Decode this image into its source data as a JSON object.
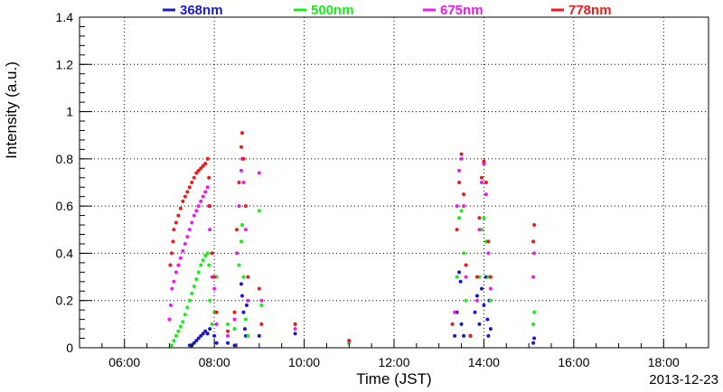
{
  "chart_data": {
    "type": "scatter",
    "title": "",
    "xlabel": "Time (JST)",
    "ylabel": "Intensity (a.u.)",
    "date_label": "2013-12-23",
    "xlim_hours": [
      5.0,
      19.0
    ],
    "ylim": [
      0,
      1.4
    ],
    "x_ticks": [
      {
        "hour": 6,
        "label": "06:00"
      },
      {
        "hour": 8,
        "label": "08:00"
      },
      {
        "hour": 10,
        "label": "10:00"
      },
      {
        "hour": 12,
        "label": "12:00"
      },
      {
        "hour": 14,
        "label": "14:00"
      },
      {
        "hour": 16,
        "label": "16:00"
      },
      {
        "hour": 18,
        "label": "18:00"
      }
    ],
    "y_ticks": [
      {
        "value": 0,
        "label": "0"
      },
      {
        "value": 0.2,
        "label": "0.2"
      },
      {
        "value": 0.4,
        "label": "0.4"
      },
      {
        "value": 0.6,
        "label": "0.6"
      },
      {
        "value": 0.8,
        "label": "0.8"
      },
      {
        "value": 1.0,
        "label": "1"
      },
      {
        "value": 1.2,
        "label": "1.2"
      },
      {
        "value": 1.4,
        "label": "1.4"
      }
    ],
    "grid": true,
    "legend_position": "top",
    "series": [
      {
        "name": "368nm",
        "color": "#1a1acc",
        "points": [
          [
            7.45,
            0.01
          ],
          [
            7.5,
            0.01
          ],
          [
            7.55,
            0.02
          ],
          [
            7.6,
            0.03
          ],
          [
            7.65,
            0.04
          ],
          [
            7.7,
            0.05
          ],
          [
            7.75,
            0.06
          ],
          [
            7.8,
            0.07
          ],
          [
            7.85,
            0.06
          ],
          [
            7.9,
            0.08
          ],
          [
            8.0,
            0.05
          ],
          [
            8.05,
            0.02
          ],
          [
            8.3,
            0.02
          ],
          [
            8.45,
            0.01
          ],
          [
            8.6,
            0.27
          ],
          [
            8.62,
            0.22
          ],
          [
            8.65,
            0.15
          ],
          [
            8.68,
            0.08
          ],
          [
            8.7,
            0.05
          ],
          [
            8.72,
            0.18
          ],
          [
            9.0,
            0.05
          ],
          [
            9.8,
            0.06
          ],
          [
            13.35,
            0.05
          ],
          [
            13.4,
            0.15
          ],
          [
            13.45,
            0.32
          ],
          [
            13.48,
            0.28
          ],
          [
            13.5,
            0.1
          ],
          [
            13.55,
            0.05
          ],
          [
            13.7,
            0.05
          ],
          [
            13.8,
            0.15
          ],
          [
            13.85,
            0.22
          ],
          [
            13.9,
            0.1
          ],
          [
            13.95,
            0.25
          ],
          [
            14.0,
            0.18
          ],
          [
            14.05,
            0.3
          ],
          [
            14.08,
            0.12
          ],
          [
            14.1,
            0.05
          ],
          [
            14.12,
            0.2
          ],
          [
            14.15,
            0.08
          ],
          [
            15.1,
            0.02
          ],
          [
            15.12,
            0.04
          ]
        ]
      },
      {
        "name": "500nm",
        "color": "#1aee1a",
        "points": [
          [
            7.05,
            0.01
          ],
          [
            7.1,
            0.03
          ],
          [
            7.15,
            0.05
          ],
          [
            7.2,
            0.07
          ],
          [
            7.25,
            0.09
          ],
          [
            7.3,
            0.11
          ],
          [
            7.35,
            0.14
          ],
          [
            7.4,
            0.17
          ],
          [
            7.45,
            0.2
          ],
          [
            7.5,
            0.23
          ],
          [
            7.55,
            0.26
          ],
          [
            7.6,
            0.29
          ],
          [
            7.65,
            0.32
          ],
          [
            7.7,
            0.35
          ],
          [
            7.75,
            0.37
          ],
          [
            7.8,
            0.39
          ],
          [
            7.85,
            0.4
          ],
          [
            7.88,
            0.35
          ],
          [
            7.9,
            0.2
          ],
          [
            7.95,
            0.1
          ],
          [
            8.0,
            0.15
          ],
          [
            8.05,
            0.3
          ],
          [
            8.3,
            0.1
          ],
          [
            8.45,
            0.08
          ],
          [
            8.55,
            0.35
          ],
          [
            8.6,
            0.45
          ],
          [
            8.62,
            0.52
          ],
          [
            8.65,
            0.3
          ],
          [
            8.7,
            0.12
          ],
          [
            8.75,
            0.05
          ],
          [
            9.0,
            0.58
          ],
          [
            9.05,
            0.18
          ],
          [
            9.8,
            0.1
          ],
          [
            11.0,
            0.02
          ],
          [
            13.4,
            0.3
          ],
          [
            13.45,
            0.55
          ],
          [
            13.5,
            0.58
          ],
          [
            13.55,
            0.4
          ],
          [
            13.6,
            0.2
          ],
          [
            13.9,
            0.3
          ],
          [
            13.95,
            0.5
          ],
          [
            14.0,
            0.55
          ],
          [
            14.05,
            0.45
          ],
          [
            14.1,
            0.3
          ],
          [
            14.15,
            0.2
          ],
          [
            15.1,
            0.1
          ],
          [
            15.12,
            0.15
          ]
        ]
      },
      {
        "name": "675nm",
        "color": "#ee1aee",
        "points": [
          [
            7.0,
            0.12
          ],
          [
            7.03,
            0.18
          ],
          [
            7.06,
            0.25
          ],
          [
            7.1,
            0.28
          ],
          [
            7.15,
            0.32
          ],
          [
            7.2,
            0.35
          ],
          [
            7.25,
            0.38
          ],
          [
            7.3,
            0.41
          ],
          [
            7.35,
            0.44
          ],
          [
            7.4,
            0.47
          ],
          [
            7.45,
            0.5
          ],
          [
            7.5,
            0.53
          ],
          [
            7.55,
            0.56
          ],
          [
            7.6,
            0.58
          ],
          [
            7.65,
            0.6
          ],
          [
            7.7,
            0.62
          ],
          [
            7.75,
            0.64
          ],
          [
            7.8,
            0.66
          ],
          [
            7.85,
            0.68
          ],
          [
            7.88,
            0.6
          ],
          [
            7.9,
            0.5
          ],
          [
            7.95,
            0.3
          ],
          [
            8.0,
            0.25
          ],
          [
            8.05,
            0.1
          ],
          [
            8.3,
            0.05
          ],
          [
            8.45,
            0.12
          ],
          [
            8.5,
            0.4
          ],
          [
            8.55,
            0.6
          ],
          [
            8.6,
            0.75
          ],
          [
            8.62,
            0.8
          ],
          [
            8.65,
            0.7
          ],
          [
            8.7,
            0.5
          ],
          [
            8.75,
            0.2
          ],
          [
            9.0,
            0.74
          ],
          [
            9.05,
            0.2
          ],
          [
            9.8,
            0.08
          ],
          [
            11.0,
            0.03
          ],
          [
            13.35,
            0.15
          ],
          [
            13.4,
            0.6
          ],
          [
            13.45,
            0.75
          ],
          [
            13.5,
            0.8
          ],
          [
            13.55,
            0.6
          ],
          [
            13.6,
            0.3
          ],
          [
            13.7,
            0.05
          ],
          [
            13.85,
            0.2
          ],
          [
            13.9,
            0.5
          ],
          [
            13.95,
            0.7
          ],
          [
            14.0,
            0.78
          ],
          [
            14.05,
            0.65
          ],
          [
            14.1,
            0.4
          ],
          [
            14.15,
            0.25
          ],
          [
            15.1,
            0.3
          ],
          [
            15.12,
            0.4
          ]
        ]
      },
      {
        "name": "778nm",
        "color": "#ee1a1a",
        "points": [
          [
            7.02,
            0.35
          ],
          [
            7.05,
            0.4
          ],
          [
            7.08,
            0.45
          ],
          [
            7.1,
            0.5
          ],
          [
            7.15,
            0.53
          ],
          [
            7.2,
            0.56
          ],
          [
            7.25,
            0.59
          ],
          [
            7.3,
            0.62
          ],
          [
            7.35,
            0.64
          ],
          [
            7.4,
            0.66
          ],
          [
            7.45,
            0.68
          ],
          [
            7.5,
            0.7
          ],
          [
            7.55,
            0.72
          ],
          [
            7.6,
            0.74
          ],
          [
            7.65,
            0.75
          ],
          [
            7.7,
            0.76
          ],
          [
            7.75,
            0.77
          ],
          [
            7.8,
            0.78
          ],
          [
            7.85,
            0.8
          ],
          [
            7.88,
            0.72
          ],
          [
            7.9,
            0.6
          ],
          [
            7.95,
            0.4
          ],
          [
            8.0,
            0.3
          ],
          [
            8.05,
            0.15
          ],
          [
            8.3,
            0.07
          ],
          [
            8.45,
            0.15
          ],
          [
            8.5,
            0.5
          ],
          [
            8.55,
            0.7
          ],
          [
            8.6,
            0.85
          ],
          [
            8.62,
            0.91
          ],
          [
            8.65,
            0.8
          ],
          [
            8.7,
            0.6
          ],
          [
            8.75,
            0.3
          ],
          [
            9.0,
            0.25
          ],
          [
            9.05,
            0.1
          ],
          [
            9.8,
            0.1
          ],
          [
            11.0,
            0.03
          ],
          [
            13.3,
            0.1
          ],
          [
            13.4,
            0.5
          ],
          [
            13.45,
            0.7
          ],
          [
            13.5,
            0.82
          ],
          [
            13.55,
            0.65
          ],
          [
            13.6,
            0.35
          ],
          [
            13.7,
            0.05
          ],
          [
            13.85,
            0.3
          ],
          [
            13.9,
            0.55
          ],
          [
            13.95,
            0.72
          ],
          [
            14.0,
            0.79
          ],
          [
            14.05,
            0.7
          ],
          [
            14.1,
            0.45
          ],
          [
            14.15,
            0.3
          ],
          [
            15.1,
            0.45
          ],
          [
            15.12,
            0.52
          ]
        ]
      }
    ]
  }
}
